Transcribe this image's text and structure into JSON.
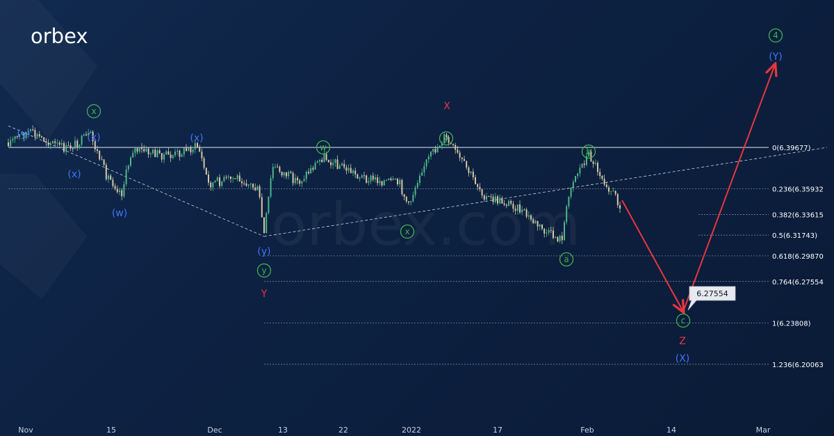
{
  "brand": {
    "logo_text": "orbex",
    "watermark": "orbex.com"
  },
  "colors": {
    "background": "#0c1f3c",
    "candle_up": "#4fb58a",
    "candle_down": "#d8c7a4",
    "fib_line": "#8a97ab",
    "trend_line": "#c9d3e3",
    "forecast_arrow": "#e8363f",
    "wave_green": "#3fb34f",
    "wave_blue": "#3d77f5",
    "wave_red": "#e8363f",
    "tooltip_bg": "#e6e9ee"
  },
  "chart_data": {
    "type": "candlestick",
    "x_axis": {
      "tick_labels": [
        "Nov",
        "15",
        "Dec",
        "13",
        "22",
        "2022",
        "17",
        "Feb",
        "14",
        "Mar"
      ]
    },
    "fib_levels": [
      {
        "ratio": "0",
        "price": "6.39677",
        "label": "0(6.39677)"
      },
      {
        "ratio": "0.236",
        "price": "6.35932",
        "label": "0.236(6.35932"
      },
      {
        "ratio": "0.382",
        "price": "6.33615",
        "label": "0.382(6.33615"
      },
      {
        "ratio": "0.5",
        "price": "6.31743",
        "label": "0.5(6.31743)"
      },
      {
        "ratio": "0.618",
        "price": "6.29870",
        "label": "0.618(6.29870"
      },
      {
        "ratio": "0.764",
        "price": "6.27554",
        "label": "0.764(6.27554"
      },
      {
        "ratio": "1",
        "price": "6.23808",
        "label": "1(6.23808)"
      },
      {
        "ratio": "1.236",
        "price": "6.20063",
        "label": "1.236(6.20063"
      }
    ],
    "price_tag": "6.27554",
    "wave_labels": [
      {
        "text": "(y)",
        "color": "blue",
        "circled": false
      },
      {
        "text": "x",
        "color": "green",
        "circled": true
      },
      {
        "text": "(x)",
        "color": "blue",
        "circled": false
      },
      {
        "text": "(x)",
        "color": "blue",
        "circled": false
      },
      {
        "text": "(w)",
        "color": "blue",
        "circled": false
      },
      {
        "text": "(x)",
        "color": "blue",
        "circled": false
      },
      {
        "text": "(y)",
        "color": "blue",
        "circled": false
      },
      {
        "text": "y",
        "color": "green",
        "circled": true
      },
      {
        "text": "Y",
        "color": "red",
        "circled": false
      },
      {
        "text": "w",
        "color": "green",
        "circled": true
      },
      {
        "text": "x",
        "color": "green",
        "circled": true
      },
      {
        "text": "y",
        "color": "green",
        "circled": true
      },
      {
        "text": "X",
        "color": "red",
        "circled": false
      },
      {
        "text": "b",
        "color": "green",
        "circled": true
      },
      {
        "text": "a",
        "color": "green",
        "circled": true
      },
      {
        "text": "c",
        "color": "green",
        "circled": true
      },
      {
        "text": "Z",
        "color": "red",
        "circled": false
      },
      {
        "text": "(X)",
        "color": "blue",
        "circled": false
      },
      {
        "text": "4",
        "color": "green",
        "circled": true
      },
      {
        "text": "(Y)",
        "color": "blue",
        "circled": false
      }
    ]
  }
}
